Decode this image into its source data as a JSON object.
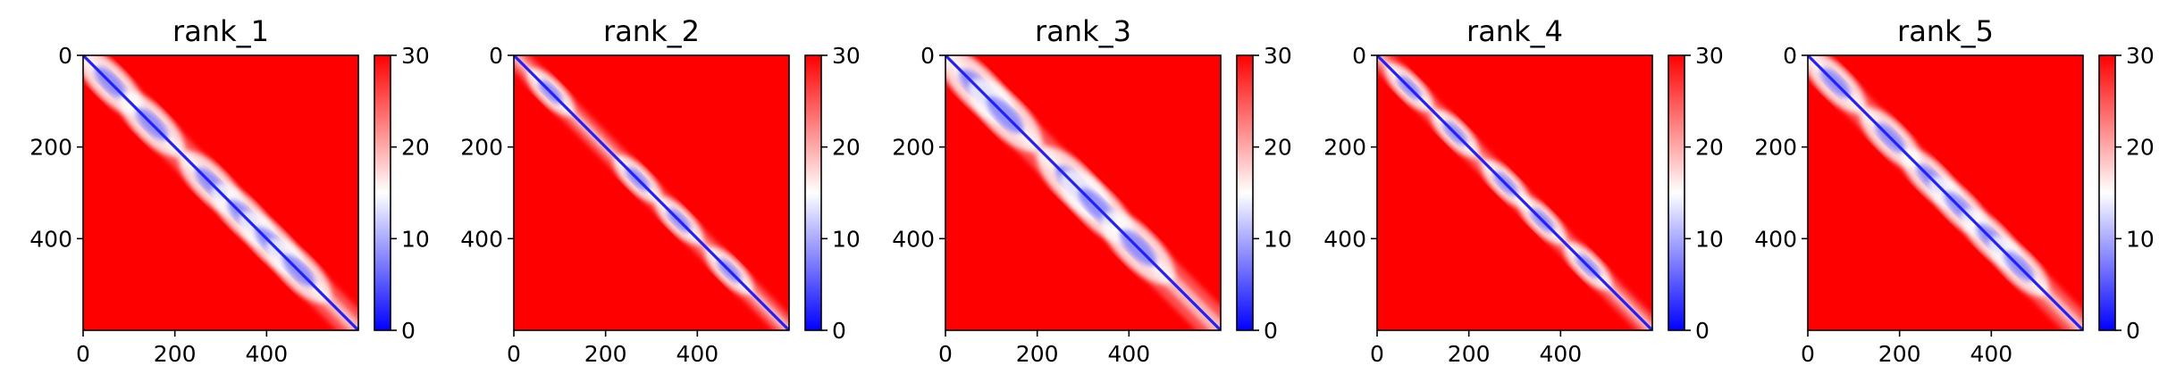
{
  "chart_data": [
    {
      "type": "heatmap",
      "title": "rank_1",
      "xticks": [
        0,
        200,
        400
      ],
      "yticks": [
        0,
        200,
        400
      ],
      "size": [
        600,
        600
      ],
      "xlim": [
        0,
        600
      ],
      "ylim": [
        600,
        0
      ],
      "colorbar": {
        "range": [
          0,
          30
        ],
        "ticks": [
          0,
          10,
          20,
          30
        ],
        "colormap": "bwr",
        "colors": [
          "#0000ff",
          "#ffffff",
          "#ff0000"
        ]
      },
      "features": {
        "diagonal": "low values (~0)",
        "low_region_centers": [
          60,
          150,
          280,
          350,
          410,
          470
        ],
        "band_width": 30
      }
    },
    {
      "type": "heatmap",
      "title": "rank_2",
      "xticks": [
        0,
        200,
        400
      ],
      "yticks": [
        0,
        200,
        400
      ],
      "size": [
        600,
        600
      ],
      "xlim": [
        0,
        600
      ],
      "ylim": [
        600,
        0
      ],
      "colorbar": {
        "range": [
          0,
          30
        ],
        "ticks": [
          0,
          10,
          20,
          30
        ],
        "colormap": "bwr",
        "colors": [
          "#0000ff",
          "#ffffff",
          "#ff0000"
        ]
      },
      "features": {
        "diagonal": "low values (~0)",
        "low_region_centers": [
          80,
          270,
          360,
          470
        ],
        "band_width": 22
      }
    },
    {
      "type": "heatmap",
      "title": "rank_3",
      "xticks": [
        0,
        200,
        400
      ],
      "yticks": [
        0,
        200,
        400
      ],
      "size": [
        600,
        600
      ],
      "xlim": [
        0,
        600
      ],
      "ylim": [
        600,
        0
      ],
      "colorbar": {
        "range": [
          0,
          30
        ],
        "ticks": [
          0,
          10,
          20,
          30
        ],
        "colormap": "bwr",
        "colors": [
          "#0000ff",
          "#ffffff",
          "#ff0000"
        ]
      },
      "features": {
        "diagonal": "low values (~0)",
        "low_region_centers": [
          70,
          130,
          280,
          330,
          420
        ],
        "band_width": 34
      }
    },
    {
      "type": "heatmap",
      "title": "rank_4",
      "xticks": [
        0,
        200,
        400
      ],
      "yticks": [
        0,
        200,
        400
      ],
      "size": [
        600,
        600
      ],
      "xlim": [
        0,
        600
      ],
      "ylim": [
        600,
        0
      ],
      "colorbar": {
        "range": [
          0,
          30
        ],
        "ticks": [
          0,
          10,
          20,
          30
        ],
        "colormap": "bwr",
        "colors": [
          "#0000ff",
          "#ffffff",
          "#ff0000"
        ]
      },
      "features": {
        "diagonal": "low values (~0)",
        "low_region_centers": [
          70,
          170,
          280,
          360,
          460
        ],
        "band_width": 22
      }
    },
    {
      "type": "heatmap",
      "title": "rank_5",
      "xticks": [
        0,
        200,
        400
      ],
      "yticks": [
        0,
        200,
        400
      ],
      "size": [
        600,
        600
      ],
      "xlim": [
        0,
        600
      ],
      "ylim": [
        600,
        0
      ],
      "colorbar": {
        "range": [
          0,
          30
        ],
        "ticks": [
          0,
          10,
          20,
          30
        ],
        "colormap": "bwr",
        "colors": [
          "#0000ff",
          "#ffffff",
          "#ff0000"
        ]
      },
      "features": {
        "diagonal": "low values (~0)",
        "low_region_centers": [
          60,
          180,
          270,
          330,
          400,
          460
        ],
        "band_width": 28
      }
    }
  ]
}
